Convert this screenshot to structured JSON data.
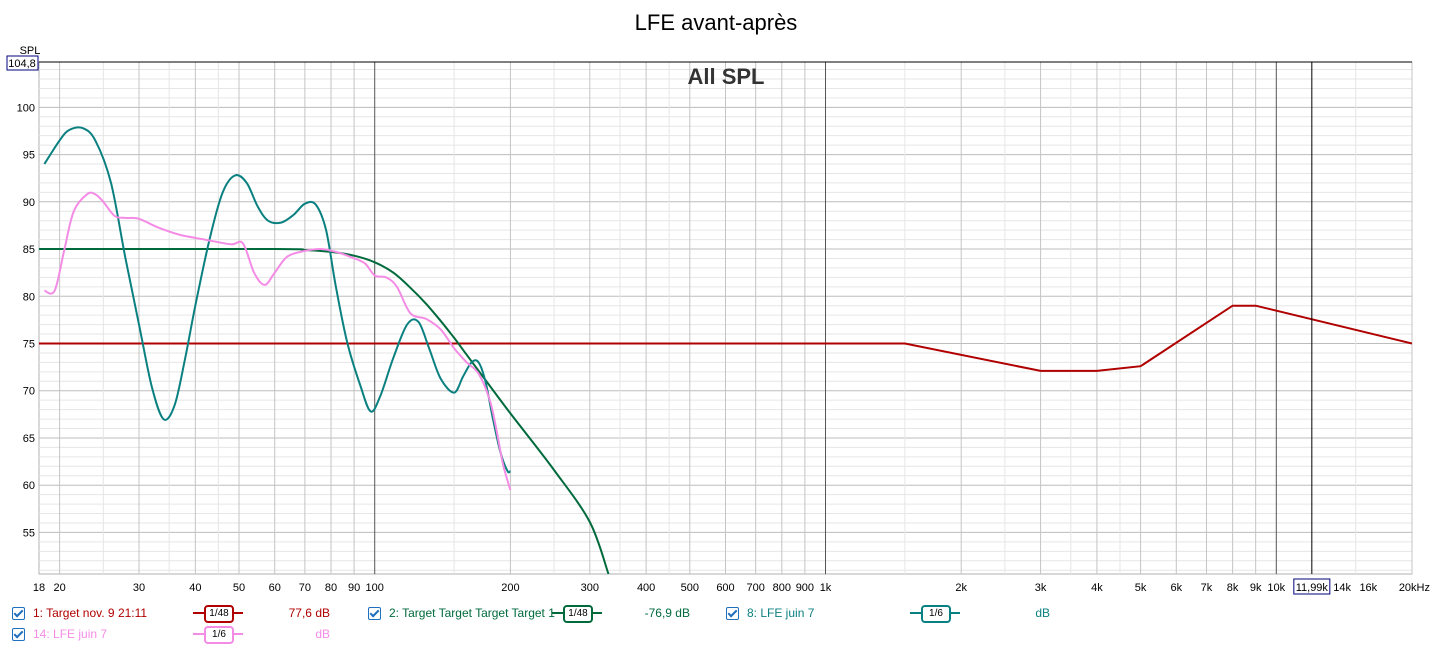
{
  "title": "LFE avant-après",
  "overlay_title": "All SPL",
  "y_axis_label": "SPL",
  "y_cursor_value": "104,8",
  "x_cursor_value": "11,99k",
  "x_cursor_freq": 11990,
  "colors": {
    "series1": "#b00000",
    "series2": "#006a3c",
    "series8": "#0b8080",
    "series14": "#f48ce6",
    "grid": "#c8c8c8",
    "axis_box": "#00007f"
  },
  "legend": [
    {
      "name": "1: Target nov. 9 21:11",
      "smoothing": "1/48",
      "value": "77,6 dB",
      "color": "#b00000",
      "checked": true
    },
    {
      "name": "2: Target Target Target Target 1",
      "smoothing": "1/48",
      "value": "-76,9 dB",
      "color": "#006a3c",
      "checked": true
    },
    {
      "name": "8: LFE juin 7",
      "smoothing": "1/6",
      "value": "dB",
      "color": "#0b8080",
      "checked": true
    },
    {
      "name": "14: LFE juin 7",
      "smoothing": "1/6",
      "value": "dB",
      "color": "#f48ce6",
      "checked": true
    }
  ],
  "chart_data": {
    "type": "line",
    "title": "LFE avant-après",
    "ylabel": "SPL",
    "xlabel": "",
    "x_scale": "log",
    "xlim": [
      18,
      20000
    ],
    "ylim": [
      50.6,
      104.8
    ],
    "y_ticks": [
      55,
      60,
      65,
      70,
      75,
      80,
      85,
      90,
      95,
      100
    ],
    "x_tick_labels": [
      {
        "f": 18,
        "label": "18"
      },
      {
        "f": 20,
        "label": "20"
      },
      {
        "f": 30,
        "label": "30"
      },
      {
        "f": 40,
        "label": "40"
      },
      {
        "f": 50,
        "label": "50"
      },
      {
        "f": 60,
        "label": "60"
      },
      {
        "f": 70,
        "label": "70"
      },
      {
        "f": 80,
        "label": "80"
      },
      {
        "f": 90,
        "label": "90"
      },
      {
        "f": 100,
        "label": "100"
      },
      {
        "f": 200,
        "label": "200"
      },
      {
        "f": 300,
        "label": "300"
      },
      {
        "f": 400,
        "label": "400"
      },
      {
        "f": 500,
        "label": "500"
      },
      {
        "f": 600,
        "label": "600"
      },
      {
        "f": 700,
        "label": "700"
      },
      {
        "f": 800,
        "label": "800"
      },
      {
        "f": 900,
        "label": "900"
      },
      {
        "f": 1000,
        "label": "1k"
      },
      {
        "f": 2000,
        "label": "2k"
      },
      {
        "f": 3000,
        "label": "3k"
      },
      {
        "f": 4000,
        "label": "4k"
      },
      {
        "f": 5000,
        "label": "5k"
      },
      {
        "f": 6000,
        "label": "6k"
      },
      {
        "f": 7000,
        "label": "7k"
      },
      {
        "f": 8000,
        "label": "8k"
      },
      {
        "f": 9000,
        "label": "9k"
      },
      {
        "f": 10000,
        "label": "10k"
      },
      {
        "f": 14000,
        "label": "14k"
      },
      {
        "f": 16000,
        "label": "16k"
      },
      {
        "f": 20000,
        "label": "20kHz"
      }
    ],
    "grid": true,
    "series": [
      {
        "name": "1: Target nov. 9 21:11",
        "color": "#b00000",
        "points": [
          [
            18,
            75
          ],
          [
            1500,
            75
          ],
          [
            3000,
            72.1
          ],
          [
            4000,
            72.1
          ],
          [
            5000,
            72.6
          ],
          [
            8000,
            79
          ],
          [
            9000,
            79
          ],
          [
            20000,
            75
          ]
        ]
      },
      {
        "name": "2: Target Target Target Target 1",
        "color": "#006a3c",
        "points": [
          [
            18,
            85
          ],
          [
            60,
            85
          ],
          [
            70,
            84.9
          ],
          [
            80,
            84.7
          ],
          [
            90,
            84.3
          ],
          [
            100,
            83.6
          ],
          [
            110,
            82.5
          ],
          [
            120,
            80.9
          ],
          [
            130,
            79.2
          ],
          [
            140,
            77.4
          ],
          [
            150,
            75.6
          ],
          [
            160,
            73.8
          ],
          [
            175,
            71.3
          ],
          [
            200,
            67.6
          ],
          [
            250,
            61.6
          ],
          [
            300,
            56.1
          ],
          [
            330,
            50.6
          ]
        ]
      },
      {
        "name": "8: LFE juin 7",
        "color": "#0b8080",
        "points": [
          [
            18.5,
            94
          ],
          [
            20,
            96.5
          ],
          [
            21,
            97.6
          ],
          [
            22.5,
            97.8
          ],
          [
            24,
            96.5
          ],
          [
            26,
            92
          ],
          [
            28,
            84
          ],
          [
            30,
            77
          ],
          [
            32,
            70.5
          ],
          [
            34,
            67
          ],
          [
            36,
            68.5
          ],
          [
            38,
            73.5
          ],
          [
            40,
            79
          ],
          [
            43,
            86
          ],
          [
            46,
            91
          ],
          [
            49,
            92.8
          ],
          [
            52,
            92
          ],
          [
            55,
            89.5
          ],
          [
            58,
            88
          ],
          [
            62,
            87.8
          ],
          [
            66,
            88.6
          ],
          [
            70,
            89.8
          ],
          [
            74,
            89.7
          ],
          [
            78,
            87
          ],
          [
            82,
            81
          ],
          [
            87,
            75
          ],
          [
            93,
            70.5
          ],
          [
            98,
            67.8
          ],
          [
            103,
            69.5
          ],
          [
            110,
            73.5
          ],
          [
            118,
            77
          ],
          [
            125,
            77.3
          ],
          [
            132,
            74.5
          ],
          [
            140,
            71.3
          ],
          [
            150,
            69.8
          ],
          [
            157,
            71.5
          ],
          [
            164,
            73
          ],
          [
            170,
            73
          ],
          [
            176,
            71
          ],
          [
            183,
            67
          ],
          [
            190,
            63.5
          ],
          [
            197,
            61.5
          ],
          [
            200,
            61.5
          ]
        ]
      },
      {
        "name": "14: LFE juin 7",
        "color": "#f48ce6",
        "points": [
          [
            18.5,
            80.6
          ],
          [
            19.5,
            80.6
          ],
          [
            20.5,
            85
          ],
          [
            21.5,
            89
          ],
          [
            23,
            90.8
          ],
          [
            24,
            90.8
          ],
          [
            25,
            90
          ],
          [
            26.5,
            88.5
          ],
          [
            28,
            88.3
          ],
          [
            30,
            88.2
          ],
          [
            33,
            87.3
          ],
          [
            37,
            86.5
          ],
          [
            42,
            86
          ],
          [
            48,
            85.5
          ],
          [
            51,
            85.6
          ],
          [
            54,
            82.5
          ],
          [
            57,
            81.2
          ],
          [
            60,
            82.5
          ],
          [
            64,
            84.2
          ],
          [
            70,
            84.8
          ],
          [
            76,
            85
          ],
          [
            82,
            84.7
          ],
          [
            88,
            84.2
          ],
          [
            95,
            83.5
          ],
          [
            100,
            82.2
          ],
          [
            106,
            82
          ],
          [
            112,
            81
          ],
          [
            120,
            78.2
          ],
          [
            130,
            77.6
          ],
          [
            140,
            76.5
          ],
          [
            150,
            74.5
          ],
          [
            160,
            73
          ],
          [
            170,
            71.8
          ],
          [
            180,
            69
          ],
          [
            186,
            66
          ],
          [
            192,
            62.5
          ],
          [
            197,
            60.5
          ],
          [
            200,
            59.5
          ]
        ]
      }
    ]
  }
}
